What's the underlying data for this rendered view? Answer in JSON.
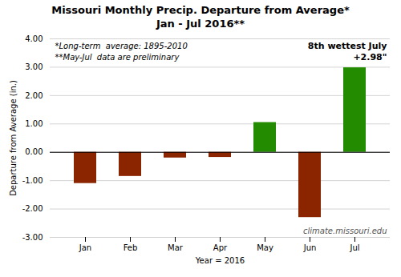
{
  "chart_data": {
    "type": "bar",
    "title": "Missouri Monthly Precip. Departure from Average*",
    "subtitle": "Jan - Jul 2016**",
    "categories": [
      "Jan",
      "Feb",
      "Mar",
      "Apr",
      "May",
      "Jun",
      "Jul"
    ],
    "values": [
      -1.1,
      -0.85,
      -0.2,
      -0.18,
      1.05,
      -2.3,
      2.98
    ],
    "colors": [
      "#8B2500",
      "#8B2500",
      "#8B2500",
      "#8B2500",
      "#228B00",
      "#8B2500",
      "#228B00"
    ],
    "xlabel": "Year = 2016",
    "ylabel": "Departure from Average (in.)",
    "ylim": [
      -3.0,
      4.0
    ],
    "yticks": [
      {
        "value": -3.0,
        "label": "-3.00"
      },
      {
        "value": -2.0,
        "label": "-2.00"
      },
      {
        "value": -1.0,
        "label": "-1.00"
      },
      {
        "value": 0.0,
        "label": "0.00"
      },
      {
        "value": 1.0,
        "label": "1.00"
      },
      {
        "value": 2.0,
        "label": "2.00"
      },
      {
        "value": 3.0,
        "label": "3.00"
      },
      {
        "value": 4.0,
        "label": "4.00"
      }
    ],
    "grid": true,
    "annotations": [
      "*Long-term  average: 1895-2010",
      "**May-Jul  data are preliminary",
      "8th wettest July",
      "+2.98\"",
      "climate.missouri.edu"
    ]
  }
}
